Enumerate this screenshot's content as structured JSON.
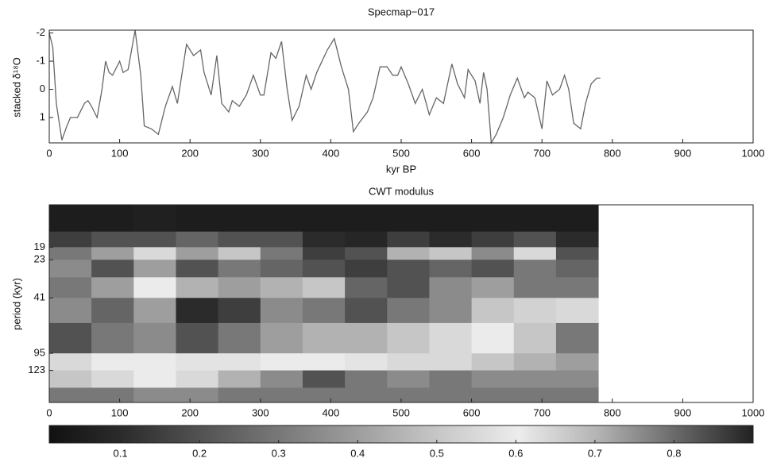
{
  "chart_data": [
    {
      "type": "line",
      "title": "Specmap−017",
      "xlabel": "kyr BP",
      "ylabel": "stacked δ¹⁸O",
      "x": [
        0,
        5,
        10,
        18,
        25,
        30,
        40,
        50,
        55,
        60,
        68,
        75,
        80,
        85,
        90,
        100,
        105,
        112,
        122,
        130,
        135,
        145,
        155,
        165,
        175,
        182,
        195,
        205,
        215,
        220,
        230,
        238,
        245,
        255,
        260,
        270,
        280,
        290,
        300,
        305,
        315,
        322,
        330,
        338,
        345,
        355,
        365,
        372,
        380,
        395,
        405,
        415,
        425,
        432,
        440,
        452,
        460,
        470,
        480,
        488,
        495,
        500,
        510,
        520,
        530,
        540,
        550,
        560,
        572,
        580,
        590,
        595,
        605,
        612,
        617,
        622,
        628,
        635,
        645,
        655,
        665,
        675,
        680,
        690,
        700,
        707,
        715,
        725,
        732,
        738,
        745,
        755,
        762,
        770,
        778,
        783
      ],
      "series": [
        {
          "name": "Specmap-017",
          "color": "#666666",
          "values": [
            -2,
            -1.5,
            0.5,
            1.8,
            1.3,
            1.0,
            1.0,
            0.5,
            0.4,
            0.6,
            1.0,
            0.0,
            -1.0,
            -0.6,
            -0.5,
            -1.0,
            -0.6,
            -0.7,
            -2.1,
            -0.5,
            1.3,
            1.4,
            1.6,
            0.6,
            -0.1,
            0.5,
            -1.6,
            -1.2,
            -1.4,
            -0.6,
            0.2,
            -1.2,
            0.5,
            0.8,
            0.4,
            0.6,
            0.2,
            -0.5,
            0.2,
            0.2,
            -1.3,
            -1.1,
            -1.7,
            0.0,
            1.1,
            0.6,
            -0.5,
            0.0,
            -0.6,
            -1.4,
            -1.8,
            -0.8,
            0.0,
            1.5,
            1.2,
            0.8,
            0.3,
            -0.8,
            -0.8,
            -0.5,
            -0.5,
            -0.8,
            -0.2,
            0.5,
            0.0,
            0.9,
            0.3,
            0.5,
            -0.9,
            -0.2,
            0.3,
            -0.7,
            -0.3,
            0.5,
            -0.6,
            0.0,
            1.9,
            1.6,
            1.0,
            0.2,
            -0.4,
            0.3,
            0.1,
            0.3,
            1.4,
            -0.3,
            0.2,
            0.0,
            -0.5,
            0.0,
            1.2,
            1.4,
            0.5,
            -0.2,
            -0.4,
            -0.4
          ]
        }
      ],
      "xlim": [
        0,
        1000
      ],
      "xticks": [
        0,
        100,
        200,
        300,
        400,
        500,
        600,
        700,
        800,
        900,
        1000
      ],
      "ylim": [
        -2.1,
        1.9
      ],
      "yticks": [
        -2,
        -1,
        0,
        1
      ],
      "y_inverted": true
    },
    {
      "type": "heatmap",
      "title": "CWT modulus",
      "ylabel": "period (kyr)",
      "x_edges": [
        0,
        60,
        120,
        180,
        240,
        300,
        360,
        420,
        480,
        540,
        600,
        660,
        720,
        780
      ],
      "period_edges": [
        10,
        15,
        19,
        23,
        30,
        41,
        60,
        95,
        123,
        160,
        200
      ],
      "values": [
        [
          0.05,
          0.05,
          0.06,
          0.05,
          0.05,
          0.05,
          0.05,
          0.05,
          0.05,
          0.05,
          0.05,
          0.05,
          0.05
        ],
        [
          0.15,
          0.2,
          0.2,
          0.25,
          0.2,
          0.2,
          0.1,
          0.08,
          0.15,
          0.1,
          0.15,
          0.2,
          0.1
        ],
        [
          0.3,
          0.4,
          0.55,
          0.4,
          0.5,
          0.3,
          0.15,
          0.2,
          0.45,
          0.5,
          0.35,
          0.55,
          0.2
        ],
        [
          0.35,
          0.2,
          0.4,
          0.2,
          0.3,
          0.25,
          0.2,
          0.15,
          0.2,
          0.25,
          0.2,
          0.3,
          0.25
        ],
        [
          0.3,
          0.4,
          0.6,
          0.45,
          0.4,
          0.45,
          0.5,
          0.25,
          0.2,
          0.35,
          0.4,
          0.3,
          0.3
        ],
        [
          0.35,
          0.25,
          0.4,
          0.1,
          0.15,
          0.35,
          0.3,
          0.2,
          0.3,
          0.35,
          0.5,
          0.65,
          0.55
        ],
        [
          0.2,
          0.3,
          0.35,
          0.2,
          0.3,
          0.4,
          0.45,
          0.45,
          0.5,
          0.55,
          0.6,
          0.5,
          0.3
        ],
        [
          0.55,
          0.6,
          0.6,
          0.62,
          0.62,
          0.6,
          0.6,
          0.58,
          0.55,
          0.55,
          0.5,
          0.45,
          0.4
        ],
        [
          0.5,
          0.55,
          0.6,
          0.55,
          0.45,
          0.35,
          0.2,
          0.3,
          0.35,
          0.3,
          0.35,
          0.35,
          0.35
        ],
        [
          0.3,
          0.3,
          0.35,
          0.35,
          0.3,
          0.3,
          0.3,
          0.3,
          0.3,
          0.3,
          0.3,
          0.3,
          0.3
        ]
      ],
      "xlim": [
        0,
        1000
      ],
      "xticks": [
        0,
        100,
        200,
        300,
        400,
        500,
        600,
        700,
        800,
        900,
        1000
      ],
      "ylim": [
        10,
        200
      ],
      "yticks": [
        19,
        23,
        41,
        95,
        123
      ],
      "log_y": true,
      "y_inverted": true,
      "clim": [
        0.01,
        0.9
      ],
      "cticks": [
        0.1,
        0.2,
        0.3,
        0.4,
        0.5,
        0.6,
        0.7,
        0.8
      ],
      "colormap": [
        "#111111",
        "#2e2e2e",
        "#555555",
        "#7a7a7a",
        "#a0a0a0",
        "#c8c8c8",
        "#ececec",
        "#b4b4b4",
        "#6a6a6a",
        "#222222"
      ]
    }
  ]
}
